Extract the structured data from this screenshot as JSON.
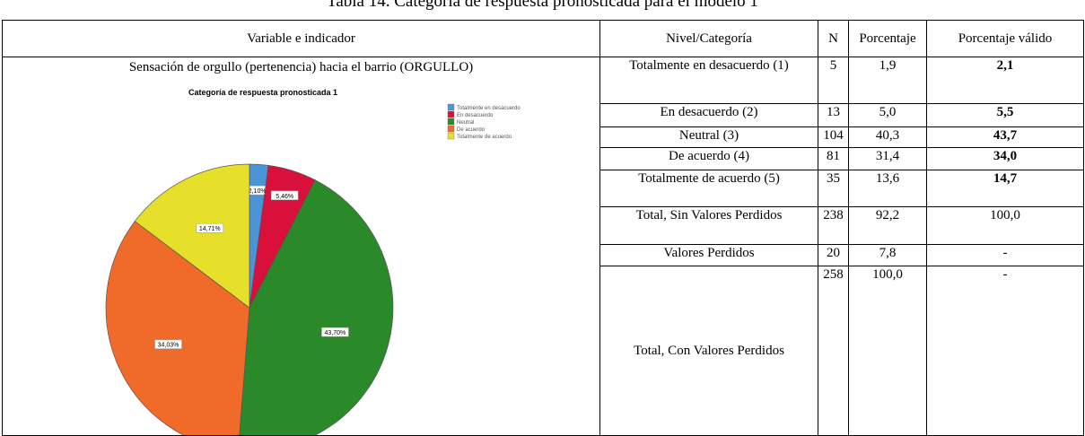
{
  "title": "Tabla 14. Categoría de respuesta pronosticada para el modelo 1",
  "table": {
    "header": [
      "Variable e indicador",
      "Nivel/Categoría",
      "N",
      "Porcentaje",
      "Porcentaje válido"
    ],
    "variable": "Sensación de orgullo (pertenencia) hacia el barrio (ORGULLO)",
    "rows": [
      [
        "Totalmente en desacuerdo (1)",
        "5",
        "1,9",
        "2,1"
      ],
      [
        "En desacuerdo (2)",
        "13",
        "5,0",
        "5,5"
      ],
      [
        "Neutral (3)",
        "104",
        "40,3",
        "43,7"
      ],
      [
        "De acuerdo (4)",
        "81",
        "31,4",
        "34,0"
      ],
      [
        "Totalmente de acuerdo (5)",
        "35",
        "13,6",
        "14,7"
      ],
      [
        "Total, Sin Valores Perdidos",
        "238",
        "92,2",
        "100,0"
      ],
      [
        "Valores Perdidos",
        "20",
        "7,8",
        "-"
      ],
      [
        "Total, Con Valores Perdidos",
        "258",
        "100,0",
        "-"
      ]
    ]
  },
  "chart_data": {
    "type": "pie",
    "title": "Categoría de respuesta pronosticada 1",
    "categories": [
      "Totalmente en desacuerdo",
      "En desacuerdo",
      "Neutral",
      "De acuerdo",
      "Totalmente de acuerdo"
    ],
    "values": [
      2.1,
      5.46,
      43.7,
      34.03,
      14.71
    ],
    "value_labels": [
      "2,10%",
      "5,46%",
      "43,70%",
      "34,03%",
      "14,71%"
    ],
    "colors": [
      "#4c94d8",
      "#d8103a",
      "#2a8a2a",
      "#f06a2a",
      "#e6e02a"
    ]
  }
}
